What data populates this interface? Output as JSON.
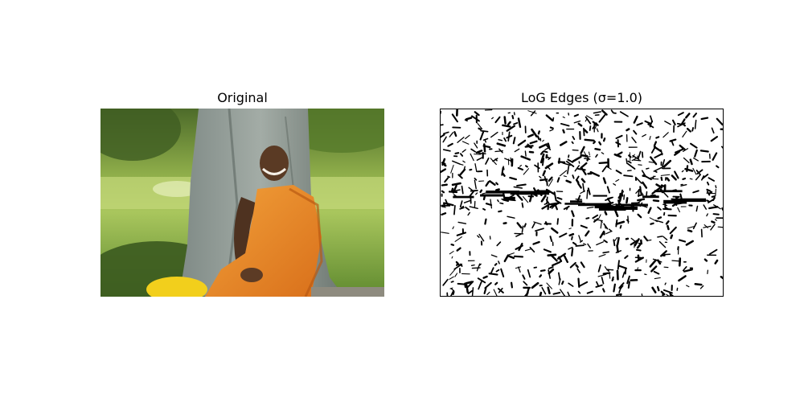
{
  "figure": {
    "panels": [
      {
        "title": "Original",
        "image": "photo of smiling monk in orange robe under a tree"
      },
      {
        "title": "LoG Edges (σ=1.0)",
        "image": "binary edge map of the same photo"
      }
    ]
  }
}
